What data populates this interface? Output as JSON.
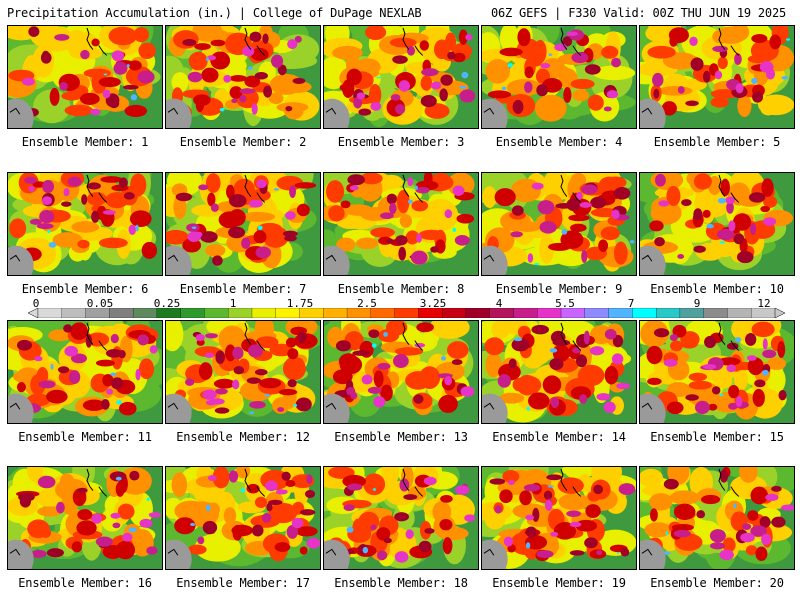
{
  "header": {
    "title": "Precipitation Accumulation (in.) | College of DuPage NEXLAB",
    "run_info": "06Z GEFS | F330 Valid: 00Z THU JUN 19 2025"
  },
  "members": [
    {
      "label": "Ensemble Member: 1",
      "seed": 11,
      "intensity": 0.45
    },
    {
      "label": "Ensemble Member: 2",
      "seed": 23,
      "intensity": 0.62
    },
    {
      "label": "Ensemble Member: 3",
      "seed": 37,
      "intensity": 0.55
    },
    {
      "label": "Ensemble Member: 4",
      "seed": 41,
      "intensity": 0.4
    },
    {
      "label": "Ensemble Member: 5",
      "seed": 53,
      "intensity": 0.5
    },
    {
      "label": "Ensemble Member: 6",
      "seed": 67,
      "intensity": 0.52
    },
    {
      "label": "Ensemble Member: 7",
      "seed": 71,
      "intensity": 0.6
    },
    {
      "label": "Ensemble Member: 8",
      "seed": 83,
      "intensity": 0.5
    },
    {
      "label": "Ensemble Member: 9",
      "seed": 97,
      "intensity": 0.63
    },
    {
      "label": "Ensemble Member: 10",
      "seed": 101,
      "intensity": 0.48
    },
    {
      "label": "Ensemble Member: 11",
      "seed": 113,
      "intensity": 0.62
    },
    {
      "label": "Ensemble Member: 12",
      "seed": 127,
      "intensity": 0.72
    },
    {
      "label": "Ensemble Member: 13",
      "seed": 131,
      "intensity": 0.55
    },
    {
      "label": "Ensemble Member: 14",
      "seed": 149,
      "intensity": 0.68
    },
    {
      "label": "Ensemble Member: 15",
      "seed": 157,
      "intensity": 0.7
    },
    {
      "label": "Ensemble Member: 16",
      "seed": 163,
      "intensity": 0.52
    },
    {
      "label": "Ensemble Member: 17",
      "seed": 173,
      "intensity": 0.5
    },
    {
      "label": "Ensemble Member: 18",
      "seed": 181,
      "intensity": 0.55
    },
    {
      "label": "Ensemble Member: 19",
      "seed": 191,
      "intensity": 0.75
    },
    {
      "label": "Ensemble Member: 20",
      "seed": 199,
      "intensity": 0.5
    }
  ],
  "colorbar": {
    "labels": [
      "0",
      "0.05",
      "0.25",
      "1",
      "1.75",
      "2.5",
      "3.25",
      "4",
      "5.5",
      "7",
      "9",
      "12"
    ],
    "colors": [
      "#d9d9d9",
      "#bdbdbd",
      "#a0a0a0",
      "#7f7f7f",
      "#5e8a5e",
      "#1e7a1e",
      "#2e9a2e",
      "#5cb82e",
      "#9bd22a",
      "#e8f000",
      "#fff200",
      "#ffd000",
      "#ffb000",
      "#ff9000",
      "#ff6a00",
      "#ff3c00",
      "#e60000",
      "#c80014",
      "#a00028",
      "#b4145a",
      "#c81e8c",
      "#e633c8",
      "#c864ff",
      "#8c8cff",
      "#50b4ff",
      "#00ffff",
      "#28c8c8",
      "#50a0a0",
      "#8c8c8c",
      "#b4b4b4",
      "#c8c8c8"
    ]
  }
}
